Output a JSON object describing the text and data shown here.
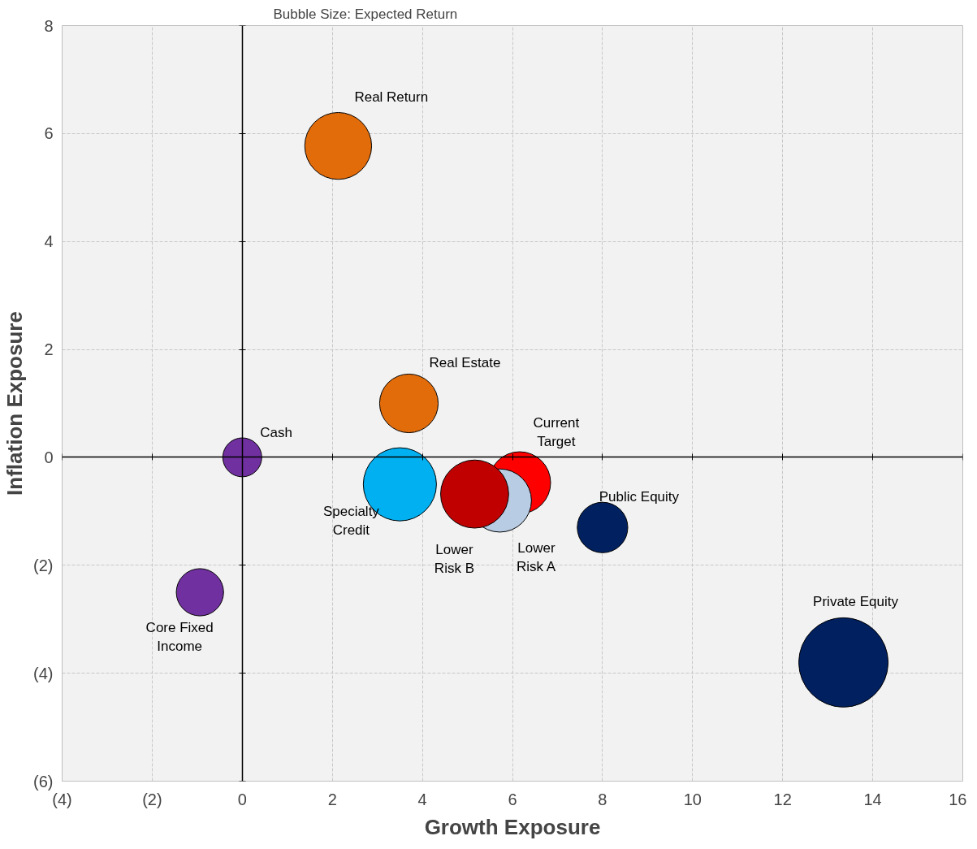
{
  "chart_data": {
    "type": "bubble",
    "xlabel": "Growth Exposure",
    "ylabel": "Inflation Exposure",
    "annotations": [
      "Bubble Size:   Expected Return"
    ],
    "xlim": [
      -4,
      16
    ],
    "ylim": [
      -6,
      8
    ],
    "xticks": [
      {
        "value": -4,
        "label": "(4)"
      },
      {
        "value": -2,
        "label": "(2)"
      },
      0,
      2,
      4,
      6,
      8,
      10,
      12,
      14,
      16
    ],
    "yticks": [
      {
        "value": -6,
        "label": "(6)"
      },
      {
        "value": -4,
        "label": "(4)"
      },
      {
        "value": -2,
        "label": "(2)"
      },
      0,
      2,
      4,
      6,
      8
    ],
    "grid": true,
    "series": [
      {
        "name": "Real Return",
        "color": "#e36c0a",
        "x": [
          2.13
        ],
        "values": [
          5.77
        ],
        "sizes": [
          0.56
        ]
      },
      {
        "name": "Real Estate",
        "color": "#e36c0a",
        "x": [
          3.7
        ],
        "values": [
          1.0
        ],
        "sizes": [
          0.43
        ]
      },
      {
        "name": "Cash",
        "color": "#7030a0",
        "x": [
          0.0
        ],
        "values": [
          0.0
        ],
        "sizes": [
          0.19
        ]
      },
      {
        "name": "Core Fixed\nIncome",
        "color": "#7030a0",
        "x": [
          -0.94
        ],
        "values": [
          -2.5
        ],
        "sizes": [
          0.28
        ]
      },
      {
        "name": "Current\nTarget",
        "color": "#ff0000",
        "x": [
          6.16
        ],
        "values": [
          -0.47
        ],
        "sizes": [
          0.48
        ]
      },
      {
        "name": "Lower\nRisk A",
        "color": "#b8cce4",
        "x": [
          5.72
        ],
        "values": [
          -0.8
        ],
        "sizes": [
          0.5
        ]
      },
      {
        "name": "Lower\nRisk B",
        "color": "#c00000",
        "x": [
          5.16
        ],
        "values": [
          -0.68
        ],
        "sizes": [
          0.58
        ]
      },
      {
        "name": "Specialty\nCredit",
        "color": "#00b0f0",
        "x": [
          3.5
        ],
        "values": [
          -0.5
        ],
        "sizes": [
          0.67
        ]
      },
      {
        "name": "Public Equity",
        "color": "#002060",
        "x": [
          8.0
        ],
        "values": [
          -1.3
        ],
        "sizes": [
          0.32
        ]
      },
      {
        "name": "Private Equity",
        "color": "#002060",
        "x": [
          13.35
        ],
        "values": [
          -3.8
        ],
        "sizes": [
          1.0
        ]
      }
    ]
  }
}
